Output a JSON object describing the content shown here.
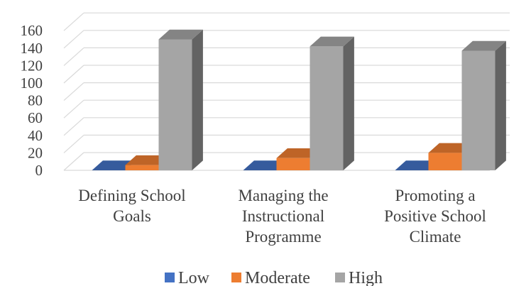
{
  "chart_data": {
    "type": "bar",
    "style": "3d-clustered-column",
    "categories": [
      [
        "Defining School",
        "Goals"
      ],
      [
        "Managing the",
        "Instructional",
        "Programme"
      ],
      [
        "Promoting a",
        "Positive School",
        "Climate"
      ]
    ],
    "series": [
      {
        "name": "Low",
        "values": [
          0,
          0,
          0
        ],
        "color": "#4472C4"
      },
      {
        "name": "Moderate",
        "values": [
          6,
          14,
          20
        ],
        "color": "#ED7D31"
      },
      {
        "name": "High",
        "values": [
          150,
          142,
          137
        ],
        "color": "#A5A5A5"
      }
    ],
    "ylim": [
      0,
      160
    ],
    "yticks": [
      "0",
      "20",
      "40",
      "60",
      "80",
      "100",
      "120",
      "140",
      "160"
    ],
    "grid": true,
    "legend": "bottom",
    "title": "",
    "xlabel": "",
    "ylabel": ""
  }
}
